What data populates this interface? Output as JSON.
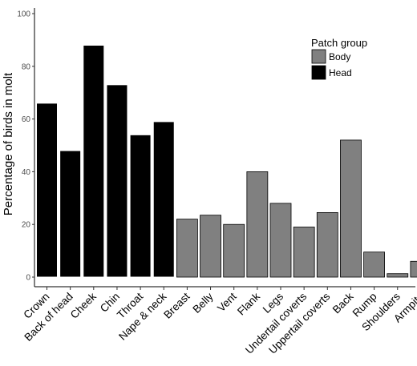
{
  "chart_data": {
    "type": "bar",
    "title": "",
    "xlabel": "",
    "ylabel": "Percentage of birds in molt",
    "ylim": [
      0,
      100
    ],
    "yticks": [
      0,
      20,
      40,
      60,
      80,
      100
    ],
    "grid": false,
    "legend_position": "top-right",
    "legend": {
      "title": "Patch group",
      "entries": [
        {
          "name": "Body",
          "color": "#808080"
        },
        {
          "name": "Head",
          "color": "#000000"
        }
      ]
    },
    "categories": [
      "Crown",
      "Back of head",
      "Cheek",
      "Chin",
      "Throat",
      "Nape & neck",
      "Breast",
      "Belly",
      "Vent",
      "Flank",
      "Legs",
      "Undertail coverts",
      "Uppertail coverts",
      "Back",
      "Rump",
      "Shoulders",
      "Armpits"
    ],
    "values": [
      66,
      48,
      88,
      73,
      54,
      59,
      22,
      23.5,
      20,
      40,
      28,
      19,
      24.5,
      52,
      9.5,
      1.3,
      6
    ],
    "groups": [
      "Head",
      "Head",
      "Head",
      "Head",
      "Head",
      "Head",
      "Body",
      "Body",
      "Body",
      "Body",
      "Body",
      "Body",
      "Body",
      "Body",
      "Body",
      "Body",
      "Body"
    ]
  }
}
